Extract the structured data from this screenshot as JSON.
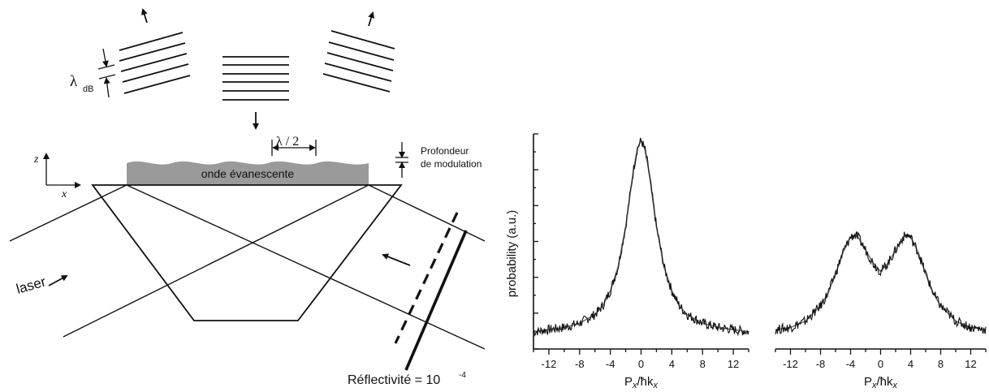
{
  "diagram": {
    "wavelength_label": "λ",
    "wavelength_sub": "dB",
    "period_label": "λ / 2",
    "evanescent_label": "onde évanescente",
    "depth_label_line1": "Profondeur",
    "depth_label_line2": "de modulation",
    "axis_z": "z",
    "axis_x": "x",
    "laser_label": "laser",
    "reflectivity_label": "Réflectivité = 10",
    "reflectivity_exp": "-4"
  },
  "chart_data": [
    {
      "type": "line",
      "ylabel": "probability (a.u.)",
      "xlabel_main": "P",
      "xlabel_sub": "x",
      "xlabel_mid": "/ħk",
      "xlabel_sub2": "x",
      "xlim": [
        -14,
        14
      ],
      "xticks": [
        -12,
        -8,
        -4,
        0,
        4,
        8,
        12
      ],
      "ylim": [
        0,
        1
      ],
      "series": [
        {
          "x": [
            -14,
            -12,
            -10,
            -8,
            -6,
            -5,
            -4,
            -3,
            -2,
            -1.5,
            -1,
            -0.5,
            0,
            0.5,
            1,
            1.5,
            2,
            3,
            4,
            5,
            6,
            8,
            10,
            12,
            14
          ],
          "y": [
            0.08,
            0.09,
            0.1,
            0.12,
            0.16,
            0.2,
            0.27,
            0.38,
            0.57,
            0.7,
            0.83,
            0.93,
            0.97,
            0.93,
            0.83,
            0.7,
            0.57,
            0.38,
            0.27,
            0.2,
            0.16,
            0.12,
            0.1,
            0.09,
            0.08
          ]
        }
      ]
    },
    {
      "type": "line",
      "xlabel_main": "P",
      "xlabel_sub": "x",
      "xlabel_mid": "/ħk",
      "xlabel_sub2": "x",
      "xlim": [
        -14,
        14
      ],
      "xticks": [
        -12,
        -8,
        -4,
        0,
        4,
        8,
        12
      ],
      "ylim": [
        0,
        1
      ],
      "series": [
        {
          "x": [
            -14,
            -12,
            -10,
            -8,
            -7,
            -6,
            -5,
            -4,
            -3.5,
            -3,
            -2,
            -1,
            0,
            1,
            2,
            3,
            3.5,
            4,
            5,
            6,
            7,
            8,
            10,
            12,
            14
          ],
          "y": [
            0.09,
            0.1,
            0.13,
            0.2,
            0.26,
            0.35,
            0.45,
            0.52,
            0.53,
            0.52,
            0.46,
            0.4,
            0.36,
            0.4,
            0.46,
            0.52,
            0.53,
            0.52,
            0.45,
            0.35,
            0.26,
            0.2,
            0.13,
            0.1,
            0.09
          ]
        }
      ]
    }
  ]
}
